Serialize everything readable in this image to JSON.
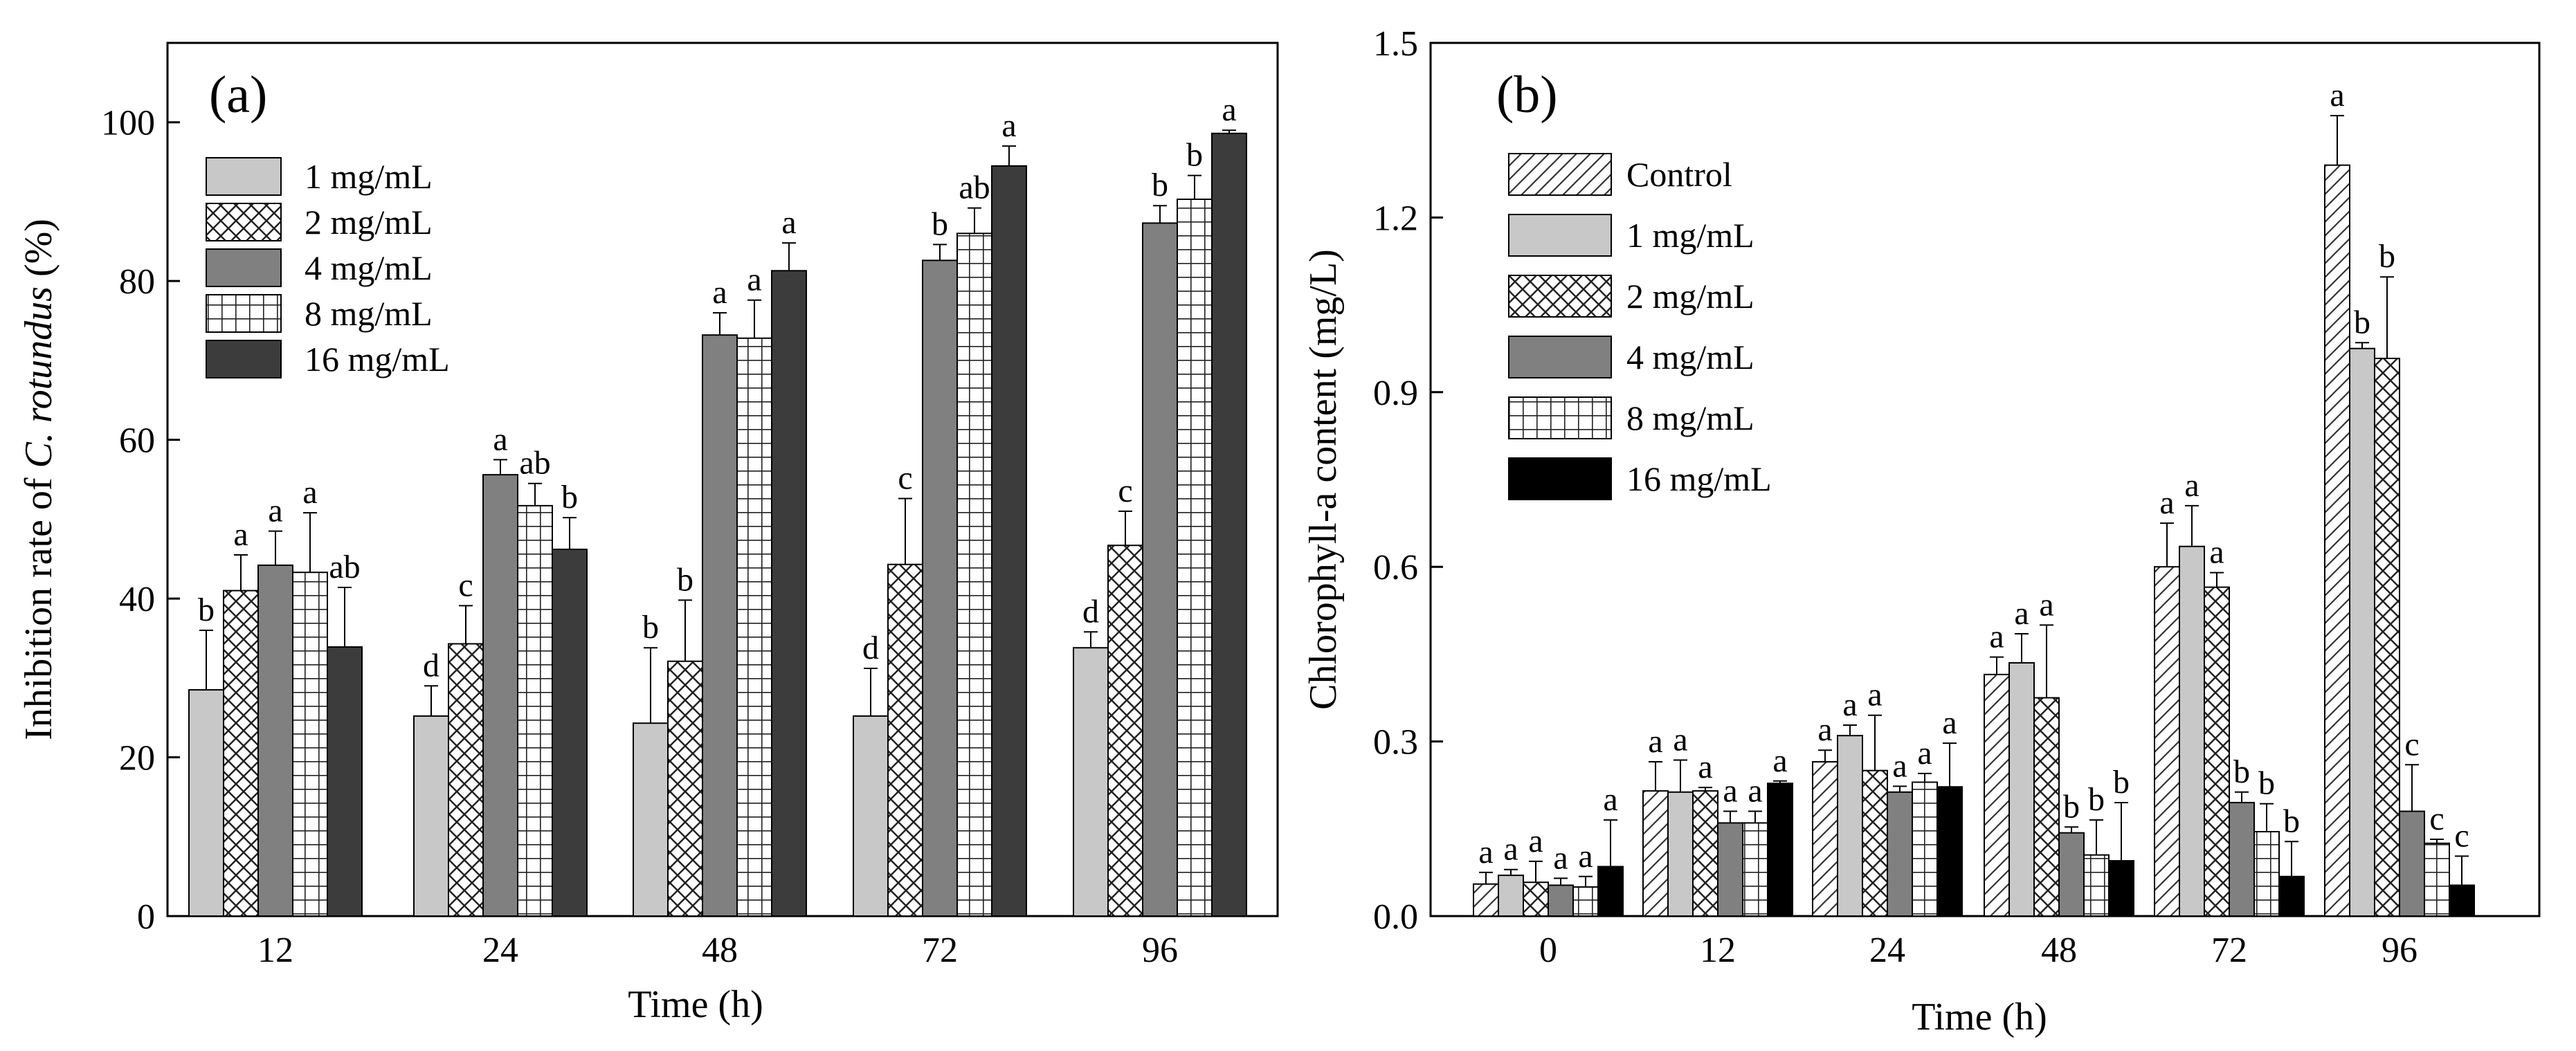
{
  "chart_data": [
    {
      "type": "bar",
      "panel_label": "(a)",
      "xlabel": "Time (h)",
      "ylabel_prefix": "Inhibition rate of ",
      "ylabel_species": "C. rotundus",
      "ylabel_suffix": " (%)",
      "ylim": [
        0,
        110
      ],
      "yticks": [
        0,
        20,
        40,
        60,
        80,
        100
      ],
      "ytick_labels": [
        "0",
        "20",
        "40",
        "60",
        "80",
        "100"
      ],
      "categories": [
        "12",
        "24",
        "48",
        "72",
        "96"
      ],
      "legend_position": "top-left",
      "series": [
        {
          "name": "1 mg/mL",
          "pattern": "light",
          "values": [
            28.5,
            25.2,
            24.3,
            25.2,
            33.8
          ],
          "errors": [
            7.5,
            3.8,
            9.5,
            6.0,
            2.0
          ],
          "letters": [
            "b",
            "d",
            "b",
            "d",
            "d"
          ]
        },
        {
          "name": "2 mg/mL",
          "pattern": "cross",
          "values": [
            41.0,
            34.3,
            32.1,
            44.3,
            46.7
          ],
          "errors": [
            4.5,
            4.8,
            7.7,
            8.3,
            4.3
          ],
          "letters": [
            "a",
            "c",
            "b",
            "c",
            "c"
          ]
        },
        {
          "name": "4 mg/mL",
          "pattern": "medium",
          "values": [
            44.2,
            55.6,
            73.2,
            82.6,
            87.3
          ],
          "errors": [
            4.3,
            1.9,
            2.8,
            2.0,
            2.2
          ],
          "letters": [
            "a",
            "a",
            "a",
            "b",
            "b"
          ]
        },
        {
          "name": "8 mg/mL",
          "pattern": "grid",
          "values": [
            43.3,
            51.7,
            72.8,
            86.0,
            90.3
          ],
          "errors": [
            7.5,
            2.8,
            4.8,
            3.2,
            3.0
          ],
          "letters": [
            "a",
            "ab",
            "a",
            "ab",
            "b"
          ]
        },
        {
          "name": "16 mg/mL",
          "pattern": "dark",
          "values": [
            33.9,
            46.2,
            81.3,
            94.5,
            98.6
          ],
          "errors": [
            7.5,
            4.0,
            3.5,
            2.5,
            0.4
          ],
          "letters": [
            "ab",
            "b",
            "a",
            "a",
            "a"
          ]
        }
      ]
    },
    {
      "type": "bar",
      "panel_label": "(b)",
      "xlabel": "Time (h)",
      "ylabel": "Chlorophyll-a content (mg/L)",
      "ylim": [
        0,
        1.5
      ],
      "yticks": [
        0,
        0.3,
        0.6,
        0.9,
        1.2,
        1.5
      ],
      "ytick_labels": [
        "0.0",
        "0.3",
        "0.6",
        "0.9",
        "1.2",
        "1.5"
      ],
      "categories": [
        "0",
        "12",
        "24",
        "48",
        "72",
        "96"
      ],
      "legend_position": "top-left",
      "series": [
        {
          "name": "Control",
          "pattern": "diag",
          "values": [
            0.055,
            0.215,
            0.265,
            0.415,
            0.6,
            1.29
          ],
          "errors": [
            0.02,
            0.05,
            0.02,
            0.03,
            0.075,
            0.085
          ],
          "letters": [
            "a",
            "a",
            "a",
            "a",
            "a",
            "a"
          ]
        },
        {
          "name": "1 mg/mL",
          "pattern": "light",
          "values": [
            0.07,
            0.213,
            0.31,
            0.435,
            0.635,
            0.975
          ],
          "errors": [
            0.01,
            0.055,
            0.018,
            0.05,
            0.07,
            0.01
          ],
          "letters": [
            "a",
            "a",
            "a",
            "a",
            "a",
            "b"
          ]
        },
        {
          "name": "2 mg/mL",
          "pattern": "cross",
          "values": [
            0.058,
            0.215,
            0.25,
            0.375,
            0.565,
            0.958
          ],
          "errors": [
            0.036,
            0.006,
            0.095,
            0.125,
            0.025,
            0.14
          ],
          "letters": [
            "a",
            "a",
            "a",
            "a",
            "a",
            "b"
          ]
        },
        {
          "name": "4 mg/mL",
          "pattern": "medium",
          "values": [
            0.053,
            0.16,
            0.213,
            0.143,
            0.195,
            0.18
          ],
          "errors": [
            0.012,
            0.02,
            0.01,
            0.01,
            0.018,
            0.08
          ],
          "letters": [
            "a",
            "a",
            "a",
            "b",
            "b",
            "c"
          ]
        },
        {
          "name": "8 mg/mL",
          "pattern": "grid",
          "values": [
            0.05,
            0.16,
            0.23,
            0.105,
            0.145,
            0.125
          ],
          "errors": [
            0.018,
            0.02,
            0.015,
            0.06,
            0.048,
            0.007
          ],
          "letters": [
            "a",
            "a",
            "a",
            "b",
            "b",
            "c"
          ]
        },
        {
          "name": "16 mg/mL",
          "pattern": "black",
          "values": [
            0.085,
            0.228,
            0.222,
            0.095,
            0.068,
            0.053
          ],
          "errors": [
            0.08,
            0.004,
            0.075,
            0.1,
            0.06,
            0.05
          ],
          "letters": [
            "a",
            "a",
            "a",
            "b",
            "b",
            "c"
          ]
        }
      ]
    }
  ]
}
